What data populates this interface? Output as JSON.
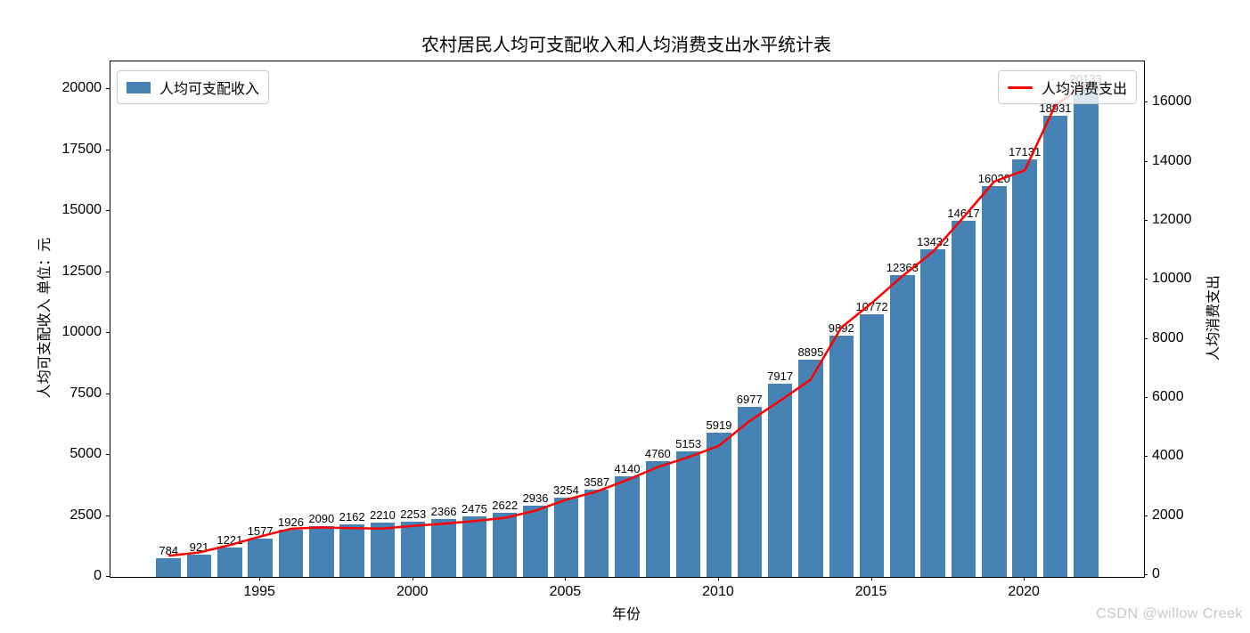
{
  "title": "农村居民人均可支配收入和人均消费支出水平统计表",
  "watermark": "CSDN @willow Creek",
  "colors": {
    "bar": "#4682B4",
    "line": "#ff0000",
    "spine": "#000000",
    "legend_border": "#cccccc",
    "watermark": "#c8c8c8"
  },
  "legend": {
    "income_label": "人均可支配收入",
    "expense_label": "人均消费支出"
  },
  "chart_data": {
    "type": "bar+line",
    "title": "农村居民人均可支配收入和人均消费支出水平统计表",
    "xlabel": "年份",
    "ylabel_left": "人均可支配收入 单位：元",
    "ylabel_right": "人均消费支出",
    "grid": false,
    "bar_labels_shown": true,
    "x": [
      1992,
      1993,
      1994,
      1995,
      1996,
      1997,
      1998,
      1999,
      2000,
      2001,
      2002,
      2003,
      2004,
      2005,
      2006,
      2007,
      2008,
      2009,
      2010,
      2011,
      2012,
      2013,
      2014,
      2015,
      2016,
      2017,
      2018,
      2019,
      2020,
      2021,
      2022
    ],
    "series": [
      {
        "name": "人均可支配收入",
        "type": "bar",
        "axis": "left",
        "color": "#4682B4",
        "values": [
          784,
          921,
          1221,
          1577,
          1926,
          2090,
          2162,
          2210,
          2253,
          2366,
          2475,
          2622,
          2936,
          3254,
          3587,
          4140,
          4760,
          5153,
          5919,
          6977,
          7917,
          8895,
          9892,
          10772,
          12363,
          13432,
          14617,
          16020,
          17131,
          18931,
          20133
        ]
      },
      {
        "name": "人均消费支出",
        "type": "line",
        "axis": "right",
        "color": "#ff0000",
        "values": [
          659,
          770,
          1017,
          1310,
          1572,
          1617,
          1590,
          1577,
          1670,
          1741,
          1834,
          1943,
          2185,
          2555,
          2829,
          3224,
          3661,
          3994,
          4382,
          5221,
          5908,
          6626,
          8383,
          9223,
          10130,
          10955,
          12124,
          13328,
          13713,
          15916,
          16632
        ]
      }
    ],
    "xlim": [
      1990.1,
      2023.9
    ],
    "left_ylim": [
      0,
      21140
    ],
    "right_ylim": [
      -60,
      17400
    ],
    "x_ticks": [
      1995,
      2000,
      2005,
      2010,
      2015,
      2020
    ],
    "left_ticks": [
      0,
      2500,
      5000,
      7500,
      10000,
      12500,
      15000,
      17500,
      20000
    ],
    "right_ticks": [
      0,
      2000,
      4000,
      6000,
      8000,
      10000,
      12000,
      14000,
      16000
    ],
    "bar_width_years": 0.8,
    "legend_positions": {
      "income": "upper-left",
      "expense": "upper-right"
    }
  }
}
